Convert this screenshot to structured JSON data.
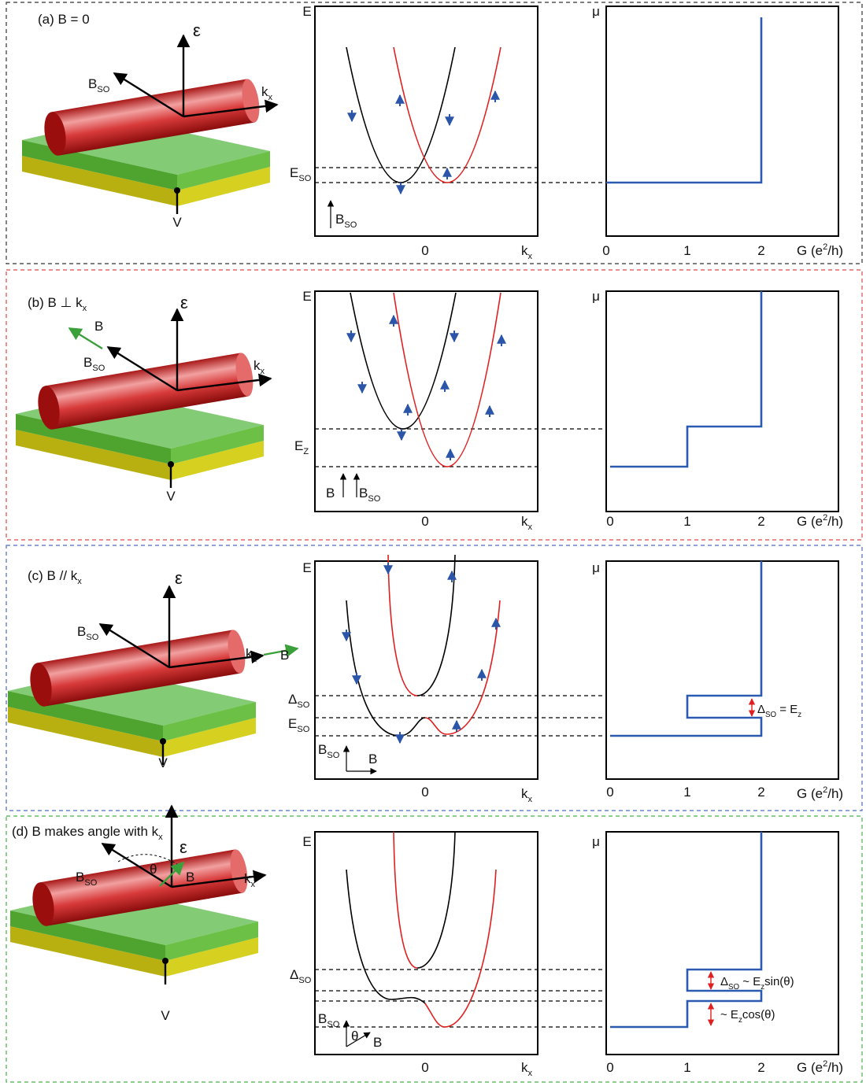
{
  "panels": [
    {
      "label": "(a) B = 0",
      "diagram": {
        "energy": "ε",
        "b_so": [
          {
            "t": "B"
          },
          {
            "sub": "SO"
          }
        ],
        "kx": [
          {
            "t": "k"
          },
          {
            "sub": "x"
          }
        ],
        "gate": "V"
      },
      "bands": {
        "y_label": "E",
        "levels": [
          [
            {
              "t": "E"
            },
            {
              "sub": "SO"
            }
          ]
        ],
        "legend": [
          [
            {
              "t": "B"
            },
            {
              "sub": "SO"
            }
          ]
        ],
        "x_tick": "0",
        "x_label": [
          {
            "t": "k"
          },
          {
            "sub": "x"
          }
        ]
      },
      "conductance": {
        "y_label": "μ",
        "x_ticks": [
          "0",
          "1",
          "2"
        ],
        "x_label": [
          {
            "t": "G (e"
          },
          {
            "sup": "2"
          },
          {
            "t": "/h)"
          }
        ]
      }
    },
    {
      "label": [
        {
          "t": "(b) B ⊥ k"
        },
        {
          "sub": "x"
        }
      ],
      "diagram": {
        "energy": "ε",
        "field": "B",
        "b_so": [
          {
            "t": "B"
          },
          {
            "sub": "SO"
          }
        ],
        "kx": [
          {
            "t": "k"
          },
          {
            "sub": "x"
          }
        ],
        "gate": "V"
      },
      "bands": {
        "y_label": "E",
        "levels": [
          [
            {
              "t": "E"
            },
            {
              "sub": "Z"
            }
          ]
        ],
        "legend": [
          "B",
          [
            {
              "t": "B"
            },
            {
              "sub": "SO"
            }
          ]
        ],
        "x_tick": "0",
        "x_label": [
          {
            "t": "k"
          },
          {
            "sub": "x"
          }
        ]
      },
      "conductance": {
        "y_label": "μ",
        "x_ticks": [
          "0",
          "1",
          "2"
        ],
        "x_label": [
          {
            "t": "G (e"
          },
          {
            "sup": "2"
          },
          {
            "t": "/h)"
          }
        ]
      }
    },
    {
      "label": [
        {
          "t": "(c) B // k"
        },
        {
          "sub": "x"
        }
      ],
      "diagram": {
        "energy": "ε",
        "field": "B",
        "b_so": [
          {
            "t": "B"
          },
          {
            "sub": "SO"
          }
        ],
        "kx": [
          {
            "t": "k"
          },
          {
            "sub": "x"
          }
        ],
        "gate": "V"
      },
      "bands": {
        "y_label": "E",
        "levels": [
          [
            {
              "t": "Δ"
            },
            {
              "sub": "SO"
            }
          ],
          [
            {
              "t": "E"
            },
            {
              "sub": "SO"
            }
          ]
        ],
        "legend": [
          [
            {
              "t": "B"
            },
            {
              "sub": "SO"
            }
          ],
          "B"
        ],
        "x_tick": "0",
        "x_label": [
          {
            "t": "k"
          },
          {
            "sub": "x"
          }
        ]
      },
      "conductance": {
        "y_label": "μ",
        "x_ticks": [
          "0",
          "1",
          "2"
        ],
        "x_label": [
          {
            "t": "G (e"
          },
          {
            "sup": "2"
          },
          {
            "t": "/h)"
          }
        ],
        "annotations": [
          [
            {
              "t": "Δ"
            },
            {
              "sub": "SO"
            },
            {
              "t": " = E"
            },
            {
              "sub": "z"
            }
          ]
        ]
      }
    },
    {
      "label": [
        {
          "t": "(d) B makes angle with k"
        },
        {
          "sub": "x"
        }
      ],
      "diagram": {
        "energy": "ε",
        "theta": "θ",
        "field": "B",
        "b_so": [
          {
            "t": "B"
          },
          {
            "sub": "SO"
          }
        ],
        "kx": [
          {
            "t": "k"
          },
          {
            "sub": "x"
          }
        ],
        "gate": "V"
      },
      "bands": {
        "y_label": "E",
        "levels": [
          [
            {
              "t": "Δ"
            },
            {
              "sub": "SO"
            }
          ]
        ],
        "legend": [
          [
            {
              "t": "B"
            },
            {
              "sub": "SO"
            }
          ],
          "θ",
          "B"
        ],
        "x_tick": "0",
        "x_label": [
          {
            "t": "k"
          },
          {
            "sub": "x"
          }
        ]
      },
      "conductance": {
        "y_label": "μ",
        "x_ticks": [
          "0",
          "1",
          "2"
        ],
        "x_label": [
          {
            "t": "G (e"
          },
          {
            "sup": "2"
          },
          {
            "t": "/h)"
          }
        ],
        "annotations": [
          [
            {
              "t": "Δ"
            },
            {
              "sub": "SO"
            },
            {
              "t": " ~ E"
            },
            {
              "sub": "z"
            },
            {
              "t": "sin(θ)"
            }
          ],
          [
            {
              "t": "~ E"
            },
            {
              "sub": "z"
            },
            {
              "t": "cos(θ)"
            }
          ]
        ]
      }
    }
  ]
}
